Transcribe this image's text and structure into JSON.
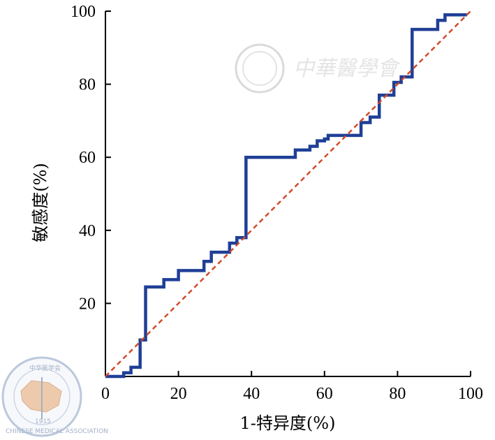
{
  "chart_data": {
    "type": "line",
    "xlabel": "1-特异度(%)",
    "ylabel": "敏感度(%)",
    "xlim": [
      0,
      100
    ],
    "ylim": [
      0,
      100
    ],
    "x_ticks": [
      "0",
      "20",
      "40",
      "60",
      "80",
      "100"
    ],
    "y_ticks": [
      "20",
      "40",
      "60",
      "80",
      "100"
    ],
    "grid": false,
    "series": [
      {
        "style": "step",
        "color": "#1f3f96",
        "x": [
          0,
          5,
          5,
          7,
          7,
          9.5,
          9.5,
          11,
          11,
          16,
          16,
          20,
          20,
          27,
          27,
          29,
          29,
          34,
          34,
          36,
          36,
          38.5,
          38.5,
          52,
          52,
          56,
          56,
          58,
          58,
          60,
          60,
          61,
          61,
          70,
          70,
          72.5,
          72.5,
          75,
          75,
          79,
          79,
          81,
          81,
          84,
          84,
          91,
          91,
          93,
          93,
          99
        ],
        "y": [
          0,
          0,
          1,
          1,
          2.5,
          2.5,
          10,
          10,
          24.5,
          24.5,
          26.5,
          26.5,
          29,
          29,
          31.5,
          31.5,
          34,
          34,
          36.5,
          36.5,
          38,
          38,
          60,
          60,
          62,
          62,
          63,
          63,
          64.5,
          64.5,
          65,
          65,
          66,
          66,
          69.5,
          69.5,
          71,
          71,
          77,
          77,
          80.5,
          80.5,
          82,
          82,
          95,
          95,
          97.5,
          97.5,
          99,
          99
        ]
      },
      {
        "style": "dashed-diagonal",
        "color": "#d24a2a",
        "x": [
          0,
          100
        ],
        "y": [
          0,
          100
        ]
      }
    ]
  },
  "watermark": {
    "text": "中華醫學會",
    "seal_text": "CHINESE MEDICAL ASSOCIATION",
    "seal_chars": "中华医学会",
    "seal_year": "1915"
  }
}
